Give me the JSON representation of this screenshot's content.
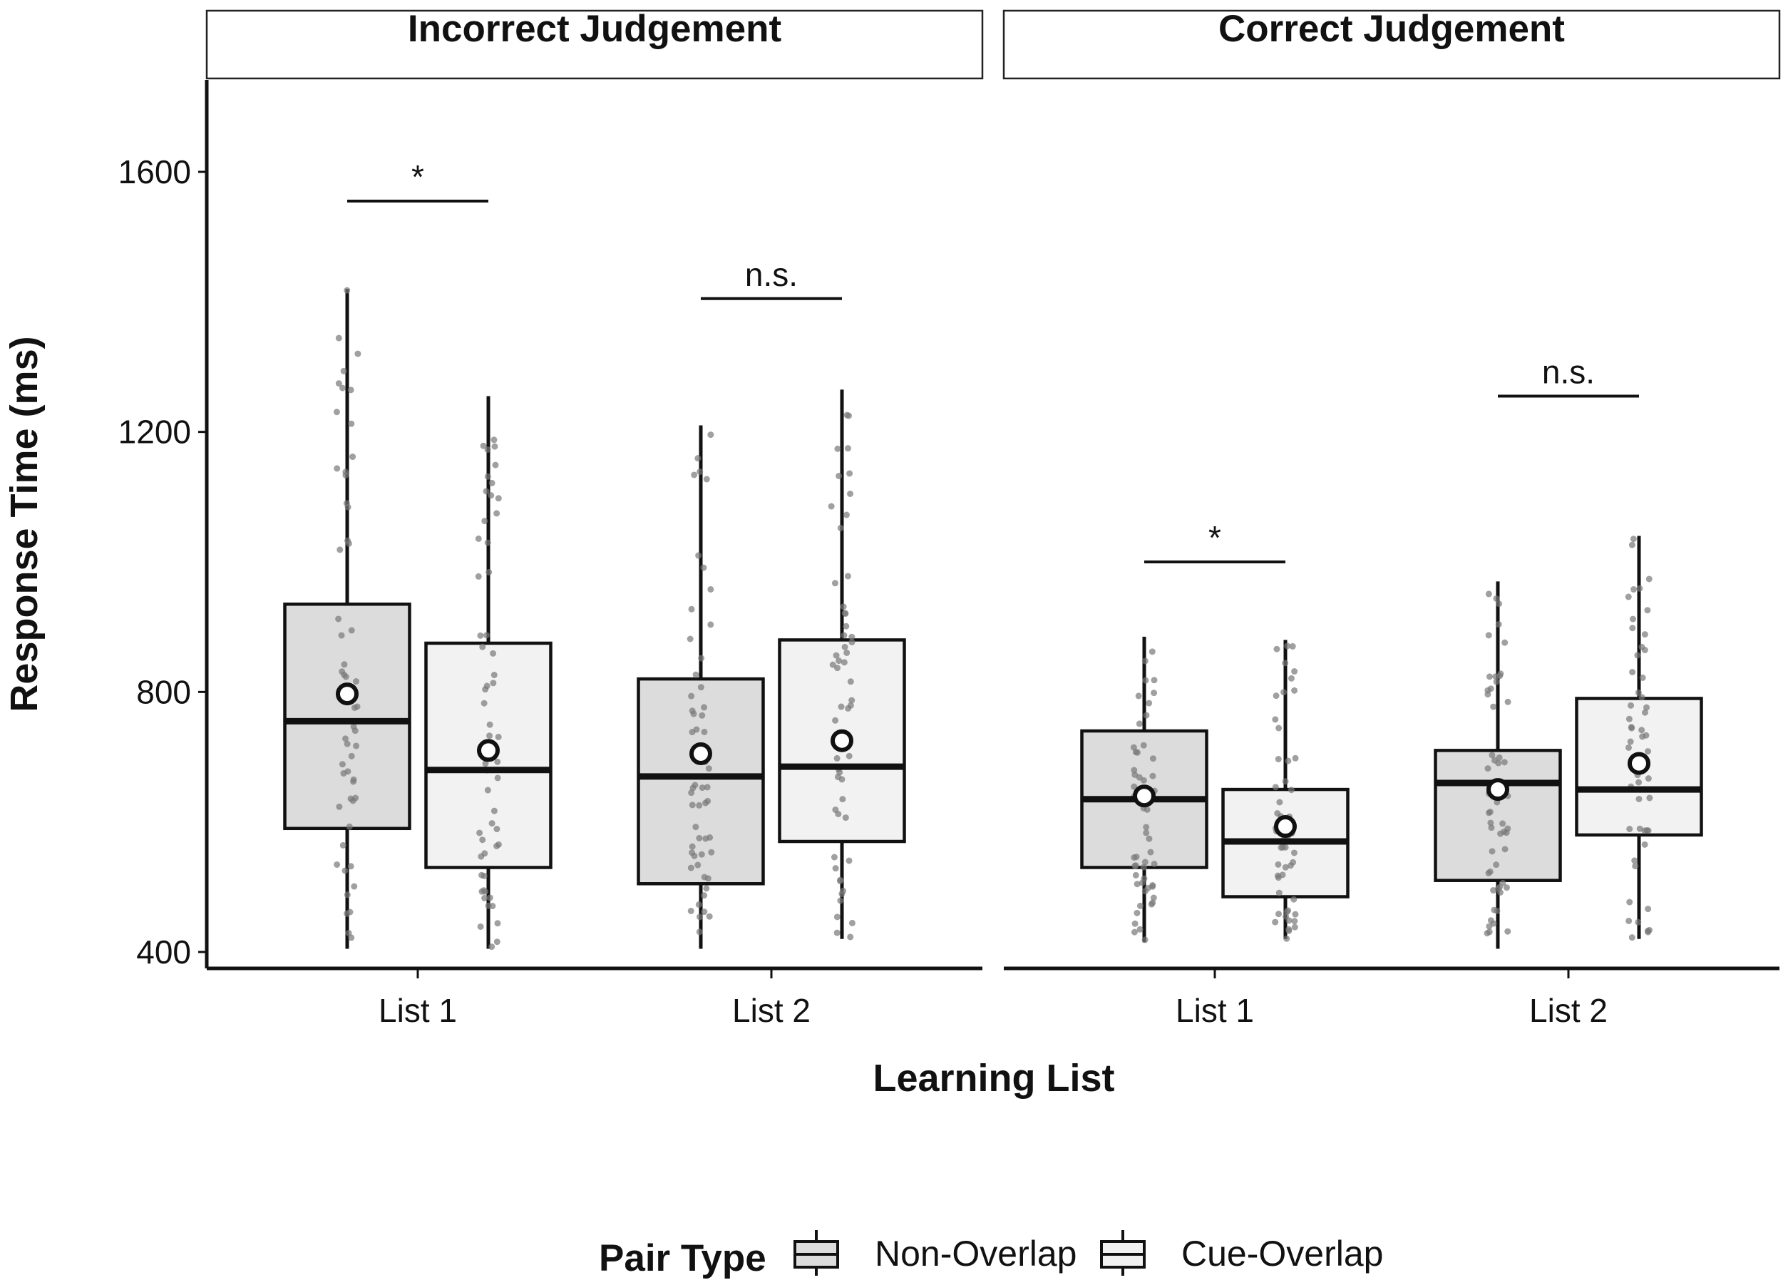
{
  "chart_data": {
    "type": "boxplot",
    "xlabel": "Learning List",
    "ylabel": "Response Time (ms)",
    "ylim": [
      375,
      1750
    ],
    "yticks": [
      400,
      800,
      1200,
      1600
    ],
    "categories": [
      "List 1",
      "List 2"
    ],
    "legend": {
      "title": "Pair Type",
      "position": "bottom",
      "entries": [
        {
          "name": "Non-Overlap",
          "fill": "#dcdcdc"
        },
        {
          "name": "Cue-Overlap",
          "fill": "#f2f2f2"
        }
      ]
    },
    "facets": [
      {
        "title": "Incorrect Judgement",
        "groups": [
          {
            "category": "List 1",
            "series": "Non-Overlap",
            "q1": 590,
            "median": 755,
            "q3": 935,
            "lower": 405,
            "upper": 1420,
            "mean": 797,
            "outliers": []
          },
          {
            "category": "List 1",
            "series": "Cue-Overlap",
            "q1": 530,
            "median": 680,
            "q3": 875,
            "lower": 405,
            "upper": 1255,
            "mean": 710,
            "outliers": []
          },
          {
            "category": "List 2",
            "series": "Non-Overlap",
            "q1": 505,
            "median": 670,
            "q3": 820,
            "lower": 405,
            "upper": 1210,
            "mean": 705,
            "outliers": []
          },
          {
            "category": "List 2",
            "series": "Cue-Overlap",
            "q1": 570,
            "median": 685,
            "q3": 880,
            "lower": 420,
            "upper": 1265,
            "mean": 725,
            "outliers": []
          }
        ],
        "comparisons": [
          {
            "category": "List 1",
            "label": "*",
            "y": 1555
          },
          {
            "category": "List 2",
            "label": "n.s.",
            "y": 1405
          }
        ]
      },
      {
        "title": "Correct Judgement",
        "groups": [
          {
            "category": "List 1",
            "series": "Non-Overlap",
            "q1": 530,
            "median": 635,
            "q3": 740,
            "lower": 415,
            "upper": 885,
            "mean": 640,
            "outliers": []
          },
          {
            "category": "List 1",
            "series": "Cue-Overlap",
            "q1": 485,
            "median": 570,
            "q3": 650,
            "lower": 420,
            "upper": 880,
            "mean": 593,
            "outliers": []
          },
          {
            "category": "List 2",
            "series": "Non-Overlap",
            "q1": 510,
            "median": 660,
            "q3": 710,
            "lower": 405,
            "upper": 970,
            "mean": 650,
            "outliers": []
          },
          {
            "category": "List 2",
            "series": "Cue-Overlap",
            "q1": 580,
            "median": 650,
            "q3": 790,
            "lower": 420,
            "upper": 1040,
            "mean": 690,
            "outliers": []
          }
        ],
        "comparisons": [
          {
            "category": "List 1",
            "label": "*",
            "y": 1000
          },
          {
            "category": "List 2",
            "label": "n.s.",
            "y": 1255
          }
        ]
      }
    ]
  }
}
